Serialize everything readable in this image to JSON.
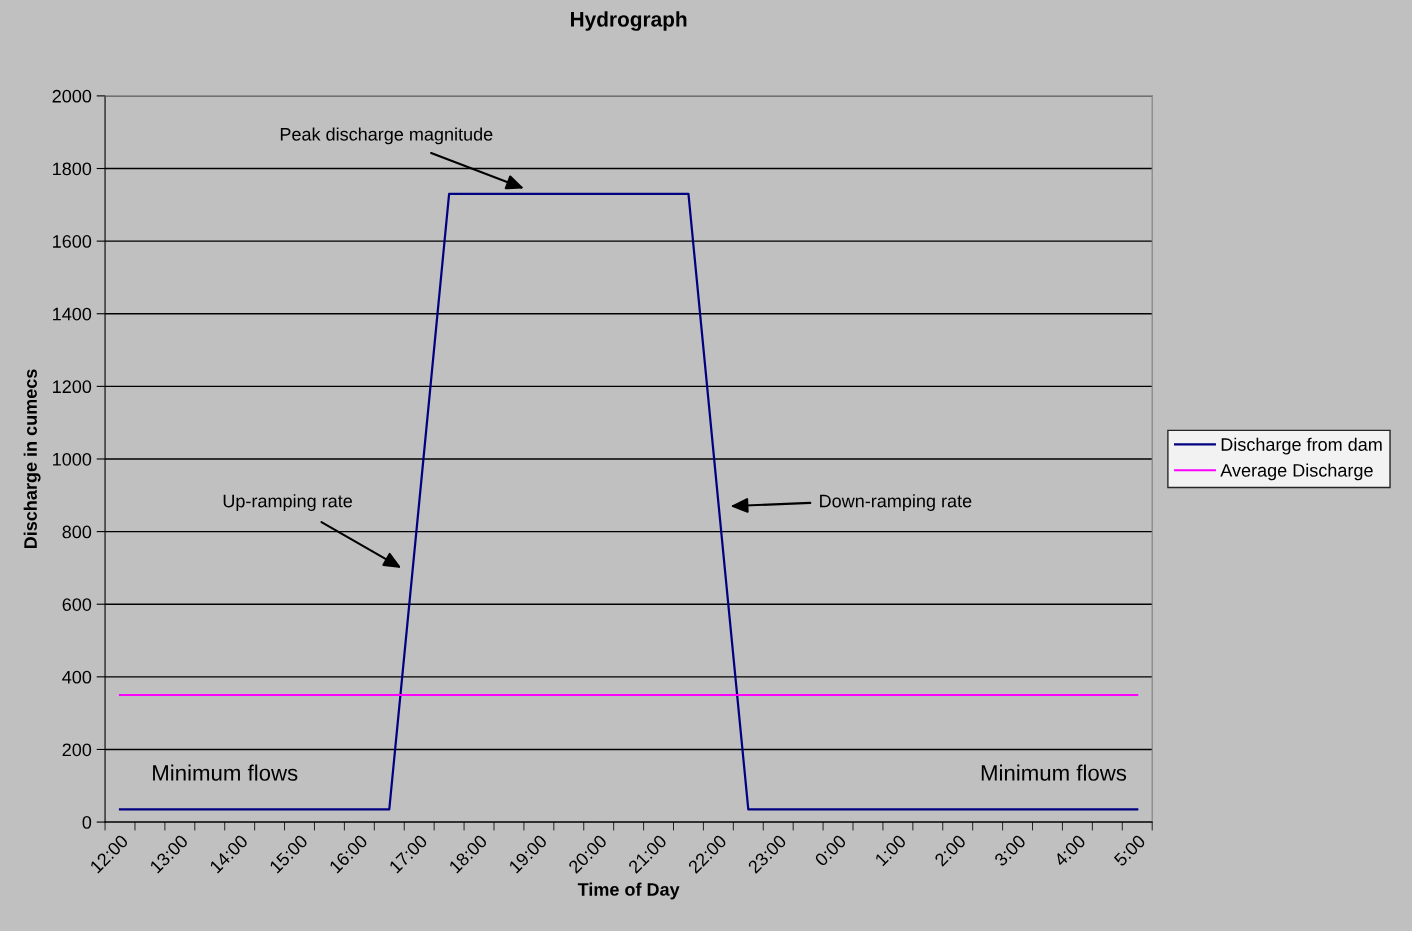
{
  "chart_data": {
    "type": "line",
    "title": "Hydrograph",
    "xlabel": "Time of Day",
    "ylabel": "Discharge in cumecs",
    "categories": [
      "12:00",
      null,
      "13:00",
      null,
      "14:00",
      null,
      "15:00",
      null,
      "16:00",
      null,
      "17:00",
      null,
      "18:00",
      null,
      "19:00",
      null,
      "20:00",
      null,
      "21:00",
      null,
      "22:00",
      null,
      "23:00",
      null,
      "0:00",
      null,
      "1:00",
      null,
      "2:00",
      null,
      "3:00",
      null,
      "4:00",
      null,
      "5:00"
    ],
    "series": [
      {
        "name": "Discharge from dam",
        "color": "#000080",
        "values": [
          35,
          35,
          35,
          35,
          35,
          35,
          35,
          35,
          35,
          35,
          880,
          1730,
          1730,
          1730,
          1730,
          1730,
          1730,
          1730,
          1730,
          1730,
          880,
          35,
          35,
          35,
          35,
          35,
          35,
          35,
          35,
          35,
          35,
          35,
          35,
          35,
          35
        ]
      },
      {
        "name": "Average Discharge",
        "color": "#ff00ff",
        "values": [
          350,
          350,
          350,
          350,
          350,
          350,
          350,
          350,
          350,
          350,
          350,
          350,
          350,
          350,
          350,
          350,
          350,
          350,
          350,
          350,
          350,
          350,
          350,
          350,
          350,
          350,
          350,
          350,
          350,
          350,
          350,
          350,
          350,
          350,
          350
        ]
      }
    ],
    "ylim": [
      0,
      2000
    ],
    "yticks": [
      0,
      200,
      400,
      600,
      800,
      1000,
      1200,
      1400,
      1600,
      1800,
      2000
    ],
    "grid": "y",
    "legend": "right",
    "marker": "none",
    "line_style": "solid",
    "annotations": [
      "Peak discharge magnitude",
      "Up-ramping rate",
      "Down-ramping rate",
      "Minimum flows",
      "Minimum flows"
    ]
  }
}
